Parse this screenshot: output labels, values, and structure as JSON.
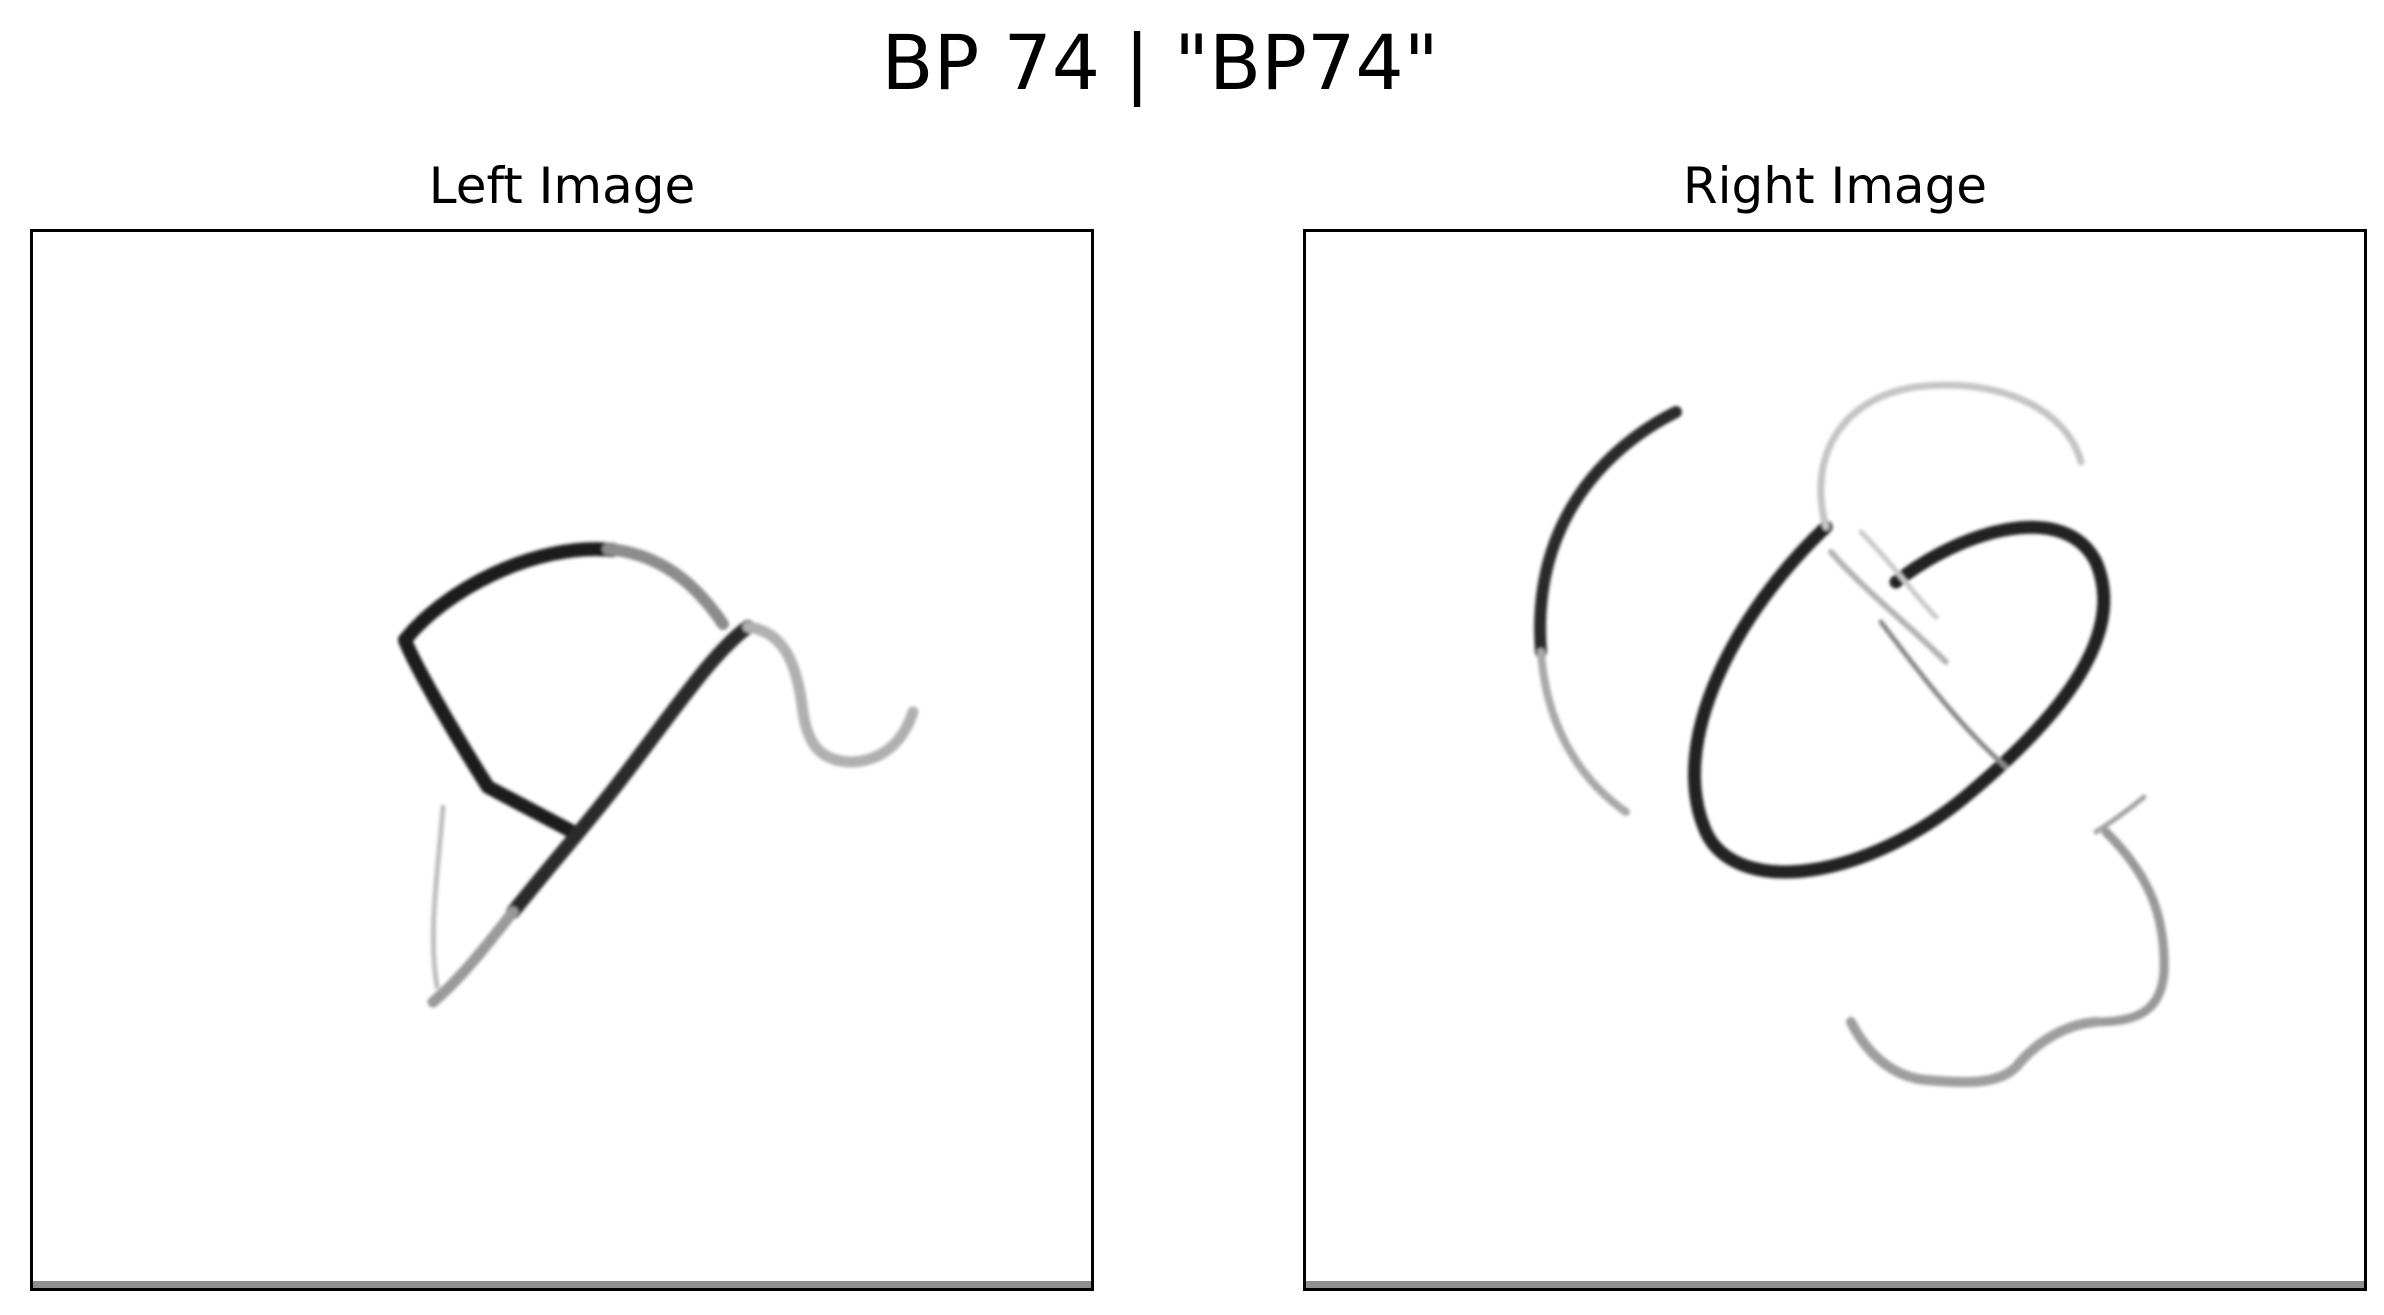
{
  "figure": {
    "title": "BP 74 | \"BP74\""
  },
  "panels": [
    {
      "title": "Left Image"
    },
    {
      "title": "Right Image"
    }
  ],
  "colors": {
    "background": "#ffffff",
    "stroke_dark": "#1a1a1a",
    "stroke_mid": "#6b6b6b",
    "stroke_light": "#b5b5b5",
    "frame": "#000000"
  }
}
